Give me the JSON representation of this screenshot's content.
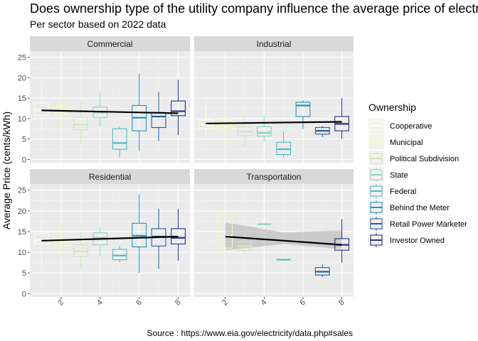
{
  "chart_data": {
    "type": "box",
    "title": "Does ownership type of the utility company influence the average price of electricity?",
    "subtitle": "Per sector based on 2022 data",
    "ylabel": "Average Price (cents/kWh)",
    "xlabel": "",
    "caption": "Source : https://www.eia.gov/electricity/data.php#sales",
    "ylim": [
      -0.8,
      26.5
    ],
    "xlim": [
      0.4,
      8.6
    ],
    "y_ticks": [
      0,
      5,
      10,
      15,
      20,
      25
    ],
    "x_ticks": [
      2,
      4,
      6,
      8
    ],
    "grid": true,
    "legend": {
      "title": "Ownership",
      "position": "right",
      "entries": [
        {
          "name": "Cooperative",
          "color": "#ffffd9"
        },
        {
          "name": "Municipal",
          "color": "#f2fbb8"
        },
        {
          "name": "Political Subdivision",
          "color": "#cbebb4"
        },
        {
          "name": "State",
          "color": "#8fd3bb"
        },
        {
          "name": "Federal",
          "color": "#50bcc4"
        },
        {
          "name": "Behind the Meter",
          "color": "#2394c0"
        },
        {
          "name": "Retail Power Marketer",
          "color": "#2260a9"
        },
        {
          "name": "Investor Owned",
          "color": "#243390"
        }
      ]
    },
    "panels": [
      {
        "name": "Commercial",
        "boxes": [
          {
            "x": 1,
            "whislo": 7.0,
            "q1": 10.8,
            "median": 12.0,
            "q3": 13.8,
            "whishi": 17.5
          },
          {
            "x": 2,
            "whislo": 8.0,
            "q1": 11.0,
            "median": 11.8,
            "q3": 13.0,
            "whishi": 16.5
          },
          {
            "x": 3,
            "whislo": 4.0,
            "q1": 7.3,
            "median": 8.5,
            "q3": 10.3,
            "whishi": 14.0
          },
          {
            "x": 4,
            "whislo": 8.0,
            "q1": 10.2,
            "median": 11.5,
            "q3": 12.8,
            "whishi": 16.5
          },
          {
            "x": 5,
            "whislo": 0.5,
            "q1": 2.5,
            "median": 4.0,
            "q3": 7.5,
            "whishi": 8.0
          },
          {
            "x": 6,
            "whislo": 2.0,
            "q1": 7.0,
            "median": 10.2,
            "q3": 13.2,
            "whishi": 21.0
          },
          {
            "x": 7,
            "whislo": 4.5,
            "q1": 7.8,
            "median": 10.5,
            "q3": 11.5,
            "whishi": 16.5
          },
          {
            "x": 8,
            "whislo": 6.0,
            "q1": 10.7,
            "median": 11.8,
            "q3": 14.3,
            "whishi": 19.5
          }
        ],
        "trend": {
          "x": [
            1,
            8
          ],
          "y": [
            12.0,
            11.3
          ]
        }
      },
      {
        "name": "Industrial",
        "boxes": [
          {
            "x": 1,
            "whislo": 6.0,
            "q1": 7.5,
            "median": 8.5,
            "q3": 9.7,
            "whishi": 14.0
          },
          {
            "x": 2,
            "whislo": 4.5,
            "q1": 7.5,
            "median": 8.5,
            "q3": 9.7,
            "whishi": 12.0
          },
          {
            "x": 3,
            "whislo": 3.0,
            "q1": 5.8,
            "median": 6.8,
            "q3": 8.0,
            "whishi": 10.5
          },
          {
            "x": 4,
            "whislo": 4.5,
            "q1": 5.7,
            "median": 6.5,
            "q3": 8.0,
            "whishi": 10.5
          },
          {
            "x": 5,
            "whislo": 0.5,
            "q1": 1.2,
            "median": 2.5,
            "q3": 4.2,
            "whishi": 6.8
          },
          {
            "x": 6,
            "whislo": 7.5,
            "q1": 10.5,
            "median": 13.2,
            "q3": 14.0,
            "whishi": 14.5
          },
          {
            "x": 7,
            "whislo": 5.5,
            "q1": 6.2,
            "median": 7.0,
            "q3": 7.8,
            "whishi": 8.2
          },
          {
            "x": 8,
            "whislo": 5.0,
            "q1": 7.0,
            "median": 8.7,
            "q3": 10.5,
            "whishi": 15.0
          }
        ],
        "trend": {
          "x": [
            1,
            8
          ],
          "y": [
            8.8,
            9.2
          ]
        }
      },
      {
        "name": "Residential",
        "boxes": [
          {
            "x": 1,
            "whislo": 7.0,
            "q1": 12.0,
            "median": 13.0,
            "q3": 14.5,
            "whishi": 18.0
          },
          {
            "x": 2,
            "whislo": 9.0,
            "q1": 11.5,
            "median": 12.5,
            "q3": 13.7,
            "whishi": 17.0
          },
          {
            "x": 3,
            "whislo": 6.0,
            "q1": 9.0,
            "median": 10.2,
            "q3": 11.8,
            "whishi": 15.0
          },
          {
            "x": 4,
            "whislo": 9.0,
            "q1": 11.8,
            "median": 13.5,
            "q3": 14.7,
            "whishi": 16.0
          },
          {
            "x": 5,
            "whislo": 7.5,
            "q1": 8.2,
            "median": 9.2,
            "q3": 10.7,
            "whishi": 11.5
          },
          {
            "x": 6,
            "whislo": 5.0,
            "q1": 11.3,
            "median": 14.0,
            "q3": 17.0,
            "whishi": 24.0
          },
          {
            "x": 7,
            "whislo": 6.0,
            "q1": 11.5,
            "median": 13.8,
            "q3": 15.7,
            "whishi": 20.5
          },
          {
            "x": 8,
            "whislo": 8.0,
            "q1": 12.0,
            "median": 13.5,
            "q3": 15.7,
            "whishi": 20.5
          }
        ],
        "trend": {
          "x": [
            1,
            8
          ],
          "y": [
            12.8,
            13.8
          ]
        }
      },
      {
        "name": "Transportation",
        "boxes": [
          {
            "x": 2,
            "whislo": 10.5,
            "q1": 11.0,
            "median": 14.0,
            "q3": 19.0,
            "whishi": 19.0
          },
          {
            "x": 3,
            "whislo": 9.5,
            "q1": 10.5,
            "median": 11.5,
            "q3": 12.5,
            "whishi": 15.0
          },
          {
            "x": 4,
            "whislo": 16.8,
            "q1": 16.8,
            "median": 16.8,
            "q3": 16.8,
            "whishi": 16.8
          },
          {
            "x": 5,
            "whislo": 8.2,
            "q1": 8.2,
            "median": 8.2,
            "q3": 8.2,
            "whishi": 8.2
          },
          {
            "x": 7,
            "whislo": 4.0,
            "q1": 4.5,
            "median": 5.3,
            "q3": 6.3,
            "whishi": 7.0
          },
          {
            "x": 8,
            "whislo": 7.5,
            "q1": 10.5,
            "median": 11.8,
            "q3": 13.3,
            "whishi": 18.0
          }
        ],
        "trend": {
          "x": [
            2,
            8
          ],
          "y": [
            13.8,
            11.8
          ]
        },
        "band": {
          "x": [
            2,
            5,
            8
          ],
          "lo": [
            10.5,
            12.0,
            10.8
          ],
          "hi": [
            17.2,
            14.8,
            15.3
          ]
        }
      }
    ]
  }
}
